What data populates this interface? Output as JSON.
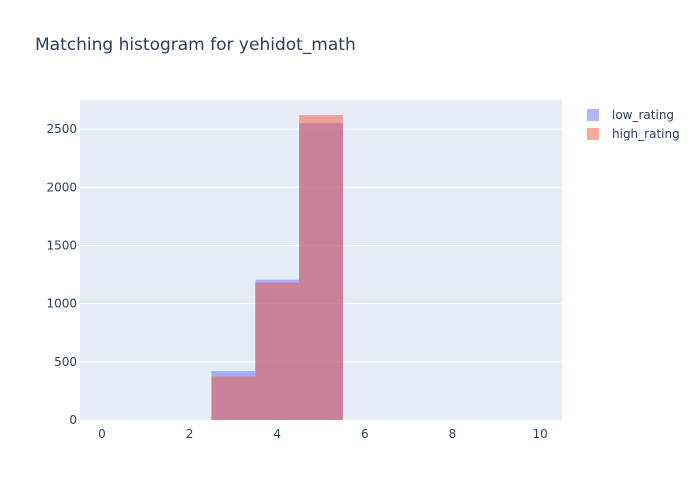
{
  "chart_data": {
    "type": "bar",
    "title": "Matching histogram for yehidot_math",
    "xlabel": "",
    "ylabel": "",
    "xlim": [
      -0.5,
      10.5
    ],
    "ylim": [
      0,
      2750
    ],
    "bin_width": 1,
    "x": [
      3,
      4,
      5
    ],
    "series": [
      {
        "name": "low_rating",
        "values": [
          420,
          1205,
          2550
        ],
        "color": "#636efa"
      },
      {
        "name": "high_rating",
        "values": [
          375,
          1180,
          2620
        ],
        "color": "#ef553b"
      }
    ],
    "xticks": [
      0,
      2,
      4,
      6,
      8,
      10
    ],
    "yticks": [
      0,
      500,
      1000,
      1500,
      2000,
      2500
    ],
    "grid": true,
    "legend": "top-right",
    "barmode": "overlay",
    "plot_bg": "#e5ecf6"
  }
}
